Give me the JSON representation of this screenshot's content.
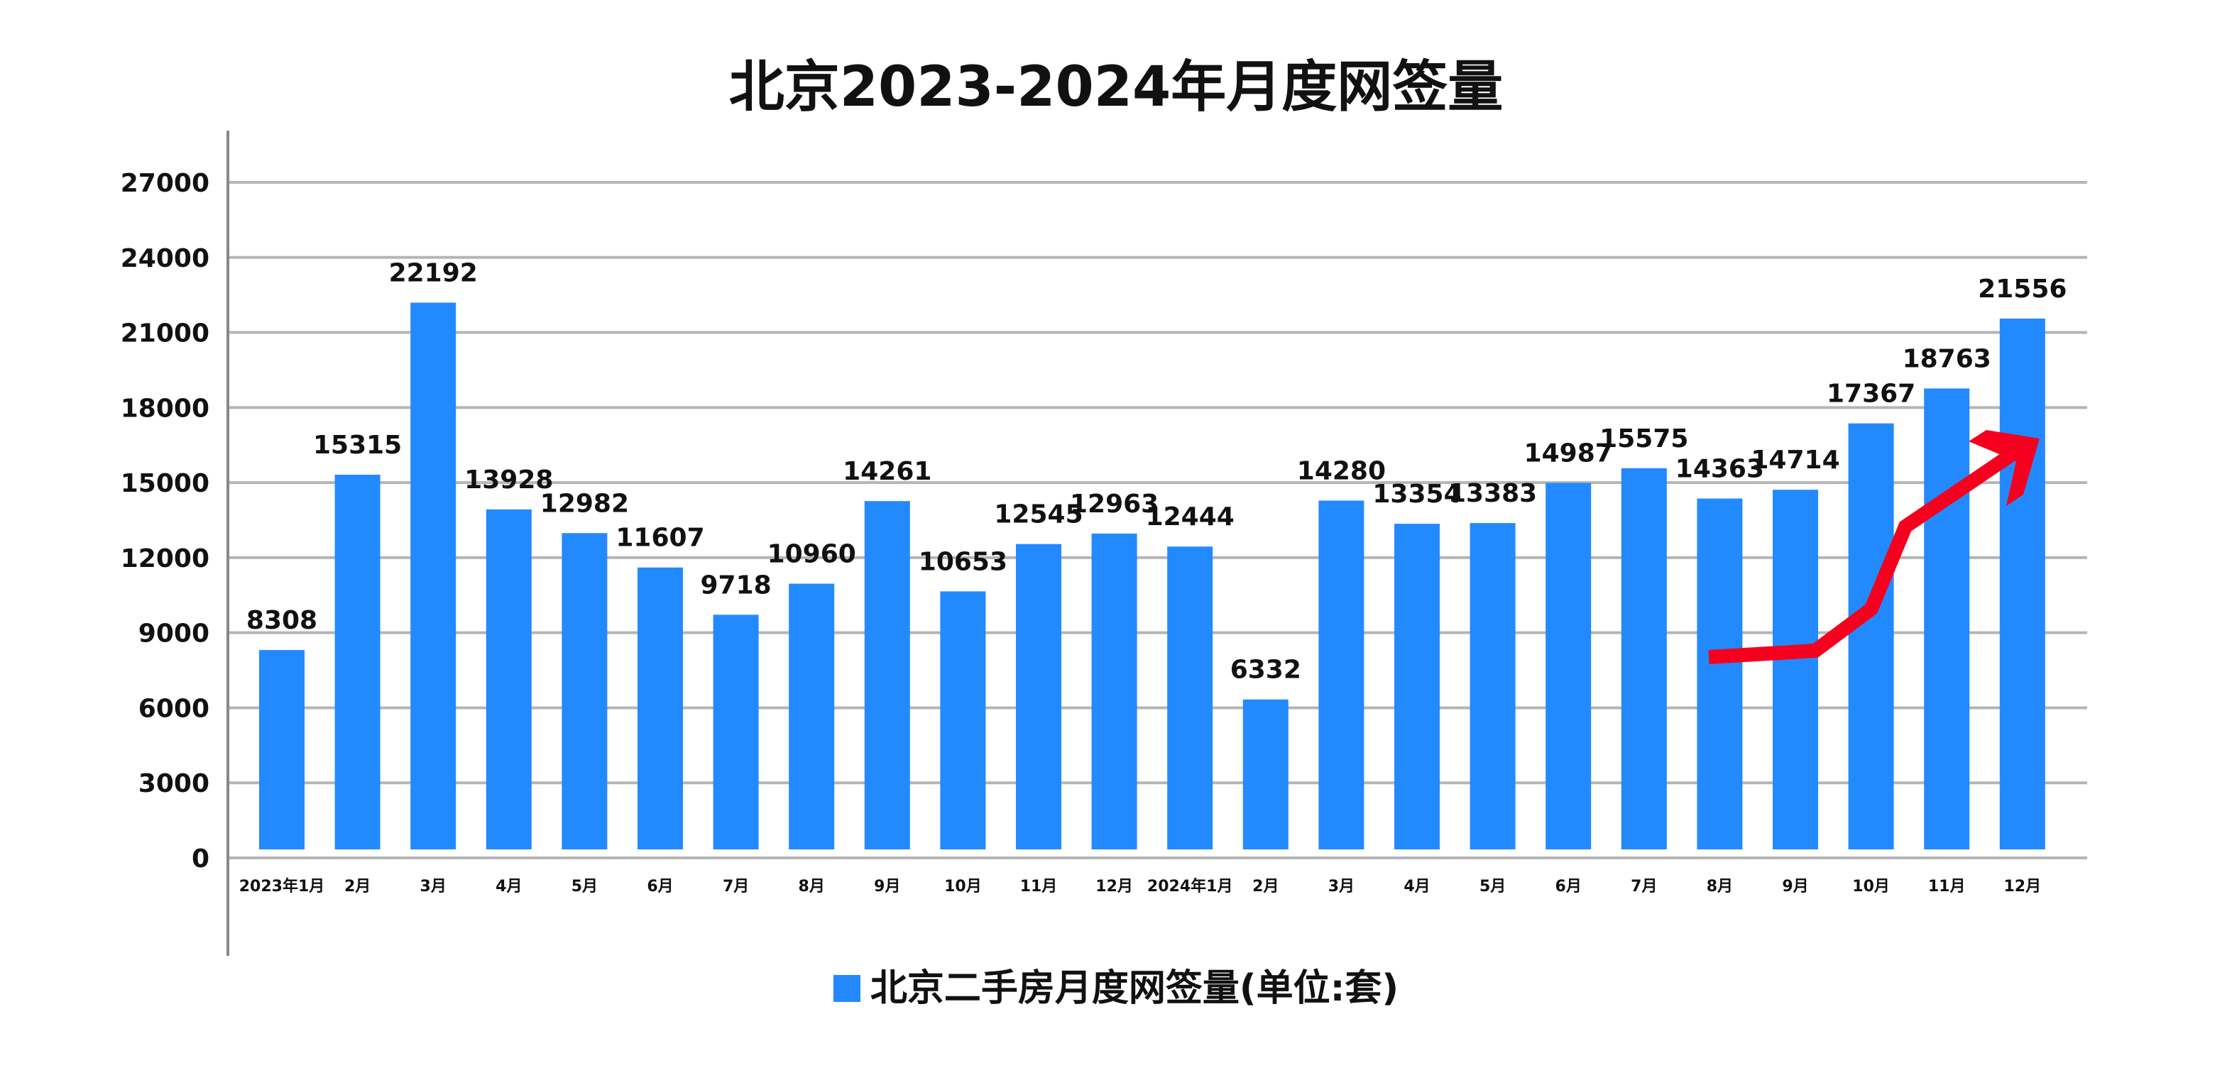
{
  "chart_data": {
    "type": "bar",
    "title": "北京2023-2024年月度网签量",
    "categories": [
      "2023年1月",
      "2月",
      "3月",
      "4月",
      "5月",
      "6月",
      "7月",
      "8月",
      "9月",
      "10月",
      "11月",
      "12月",
      "2024年1月",
      "2月",
      "3月",
      "4月",
      "5月",
      "6月",
      "7月",
      "8月",
      "9月",
      "10月",
      "11月",
      "12月"
    ],
    "series": [
      {
        "name": "北京二手房月度网签量(单位:套)",
        "values": [
          8308,
          15315,
          22192,
          13928,
          12982,
          11607,
          9718,
          10960,
          14261,
          10653,
          12545,
          12963,
          12444,
          6332,
          14280,
          13354,
          13383,
          14987,
          15575,
          14363,
          14714,
          17367,
          18763,
          21556
        ]
      }
    ],
    "ylim": [
      0,
      27000
    ],
    "yticks": [
      0,
      3000,
      6000,
      9000,
      12000,
      15000,
      18000,
      21000,
      24000,
      27000
    ],
    "grid": true,
    "legend": "bottom",
    "bar_color": "#2389ff",
    "annotation": {
      "type": "red-upward-trend-arrow",
      "color": "#f5001e"
    }
  }
}
